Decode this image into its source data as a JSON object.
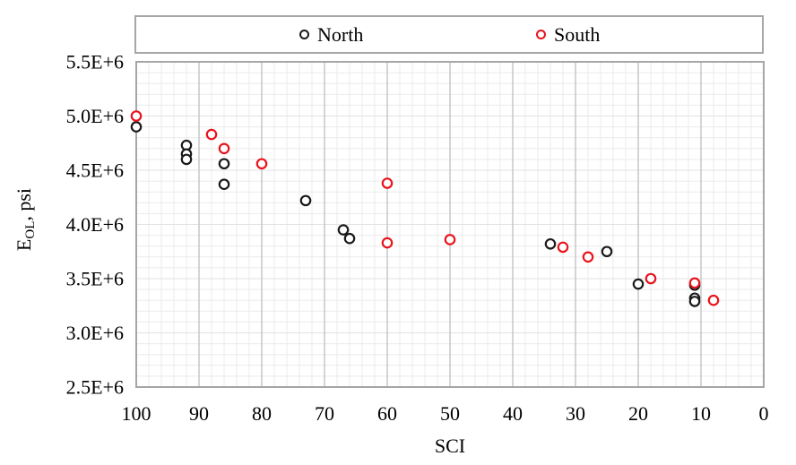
{
  "chart_data": {
    "type": "scatter",
    "title": "",
    "xlabel": "SCI",
    "ylabel": "E_OL, psi",
    "ylabel_parts": {
      "base": "E",
      "subscript": "OL",
      "suffix": ", psi"
    },
    "x_axis": {
      "min": 0,
      "max": 100,
      "reversed": true,
      "major_tick_step": 10,
      "minor_tick_step": 2,
      "tick_labels": [
        "100",
        "90",
        "80",
        "70",
        "60",
        "50",
        "40",
        "30",
        "20",
        "10",
        "0"
      ]
    },
    "y_axis": {
      "min": 2500000,
      "max": 5500000,
      "major_tick_step": 500000,
      "minor_tick_step": 100000,
      "tick_labels": [
        "5.5E+6",
        "5.0E+6",
        "4.5E+6",
        "4.0E+6",
        "3.5E+6",
        "3.0E+6",
        "2.5E+6"
      ]
    },
    "grid": true,
    "legend": {
      "position": "top",
      "entries": [
        {
          "label": "North",
          "color": "#1a1a1a"
        },
        {
          "label": "South",
          "color": "#e8141c"
        }
      ]
    },
    "series": [
      {
        "name": "North",
        "color": "#1a1a1a",
        "points": [
          [
            100,
            4900000
          ],
          [
            92,
            4730000
          ],
          [
            92,
            4650000
          ],
          [
            92,
            4600000
          ],
          [
            86,
            4560000
          ],
          [
            86,
            4370000
          ],
          [
            73,
            4220000
          ],
          [
            67,
            3950000
          ],
          [
            66,
            3870000
          ],
          [
            34,
            3820000
          ],
          [
            25,
            3750000
          ],
          [
            20,
            3450000
          ],
          [
            11,
            3440000
          ],
          [
            11,
            3320000
          ],
          [
            11,
            3290000
          ]
        ]
      },
      {
        "name": "South",
        "color": "#e8141c",
        "points": [
          [
            100,
            5000000
          ],
          [
            88,
            4830000
          ],
          [
            86,
            4700000
          ],
          [
            80,
            4560000
          ],
          [
            60,
            4380000
          ],
          [
            60,
            3830000
          ],
          [
            50,
            3860000
          ],
          [
            32,
            3790000
          ],
          [
            28,
            3700000
          ],
          [
            18,
            3500000
          ],
          [
            11,
            3460000
          ],
          [
            8,
            3300000
          ]
        ]
      }
    ],
    "colors": {
      "plot_border": "#a6a6a6",
      "major_grid_vertical": "#c3c3c3",
      "major_grid_horizontal": "#e2e2e2",
      "minor_grid": "#ebebeb"
    }
  }
}
